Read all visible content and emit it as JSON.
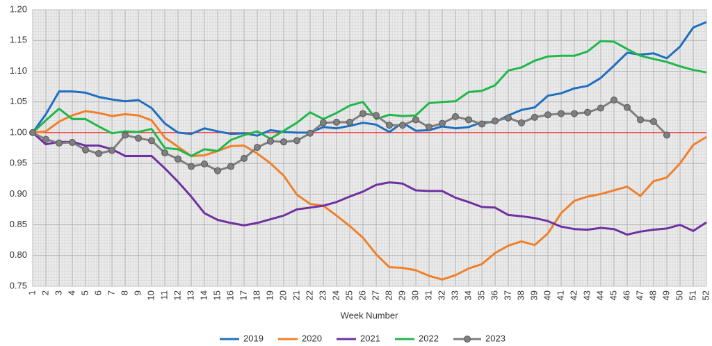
{
  "chart_data": {
    "type": "line",
    "x_label": "Week Number",
    "categories": [
      "1",
      "2",
      "3",
      "4",
      "5",
      "6",
      "7",
      "8",
      "9",
      "10",
      "11",
      "12",
      "13",
      "14",
      "15",
      "16",
      "17",
      "18",
      "19",
      "20",
      "21",
      "22",
      "23",
      "24",
      "25",
      "26",
      "27",
      "28",
      "29",
      "30",
      "31",
      "32",
      "33",
      "34",
      "35",
      "36",
      "37",
      "38",
      "39",
      "40",
      "41",
      "42",
      "43",
      "44",
      "45",
      "46",
      "47",
      "48",
      "49",
      "50",
      "51",
      "52"
    ],
    "ylim": [
      0.75,
      1.2
    ],
    "yticks": [
      {
        "value": 0.75,
        "label": "0.75"
      },
      {
        "value": 0.8,
        "label": "0.80"
      },
      {
        "value": 0.85,
        "label": "0.85"
      },
      {
        "value": 0.9,
        "label": "0.90"
      },
      {
        "value": 0.95,
        "label": "0.95"
      },
      {
        "value": 1,
        "label": "1.00"
      },
      {
        "value": 1.05,
        "label": "1.05"
      },
      {
        "value": 1.1,
        "label": "1.10"
      },
      {
        "value": 1.15,
        "label": "1.15"
      },
      {
        "value": 1.2,
        "label": "1.20"
      }
    ],
    "grid": true,
    "reference_line": {
      "value": 1,
      "color": "#ff0000"
    },
    "legend": "bottom",
    "series": [
      {
        "name": "2019",
        "color": "#1f6fc0",
        "markers": false,
        "values": [
          1.0,
          1.03,
          1.067,
          1.067,
          1.065,
          1.058,
          1.054,
          1.051,
          1.053,
          1.04,
          1.015,
          1.0,
          0.998,
          1.007,
          1.002,
          0.998,
          0.999,
          0.995,
          1.004,
          1.001,
          1.0,
          1.0,
          1.009,
          1.007,
          1.011,
          1.016,
          1.013,
          1.001,
          1.016,
          1.003,
          1.004,
          1.01,
          1.007,
          1.009,
          1.017,
          1.017,
          1.028,
          1.037,
          1.041,
          1.06,
          1.064,
          1.072,
          1.076,
          1.089,
          1.109,
          1.13,
          1.127,
          1.129,
          1.121,
          1.14,
          1.171,
          1.18
        ]
      },
      {
        "name": "2020",
        "color": "#f0802a",
        "markers": false,
        "values": [
          1.0,
          1.002,
          1.018,
          1.028,
          1.035,
          1.032,
          1.027,
          1.03,
          1.028,
          1.02,
          0.992,
          0.977,
          0.962,
          0.963,
          0.97,
          0.978,
          0.979,
          0.966,
          0.95,
          0.93,
          0.899,
          0.884,
          0.881,
          0.865,
          0.848,
          0.829,
          0.802,
          0.781,
          0.78,
          0.776,
          0.767,
          0.761,
          0.768,
          0.779,
          0.786,
          0.804,
          0.816,
          0.823,
          0.817,
          0.836,
          0.869,
          0.889,
          0.896,
          0.9,
          0.906,
          0.912,
          0.897,
          0.921,
          0.927,
          0.95,
          0.98,
          0.993
        ]
      },
      {
        "name": "2021",
        "color": "#7030a0",
        "markers": false,
        "values": [
          1.0,
          0.981,
          0.985,
          0.985,
          0.979,
          0.979,
          0.973,
          0.962,
          0.962,
          0.962,
          0.942,
          0.92,
          0.896,
          0.869,
          0.858,
          0.853,
          0.849,
          0.853,
          0.859,
          0.865,
          0.875,
          0.878,
          0.881,
          0.887,
          0.896,
          0.904,
          0.915,
          0.919,
          0.917,
          0.906,
          0.905,
          0.905,
          0.894,
          0.887,
          0.879,
          0.878,
          0.866,
          0.864,
          0.861,
          0.856,
          0.847,
          0.843,
          0.842,
          0.845,
          0.843,
          0.834,
          0.839,
          0.842,
          0.844,
          0.85,
          0.84,
          0.854
        ]
      },
      {
        "name": "2022",
        "color": "#1fb84a",
        "markers": false,
        "values": [
          1.0,
          1.02,
          1.039,
          1.022,
          1.022,
          1.01,
          0.999,
          1.002,
          1.001,
          1.006,
          0.975,
          0.973,
          0.962,
          0.973,
          0.97,
          0.988,
          0.996,
          1.002,
          0.99,
          1.003,
          1.016,
          1.033,
          1.022,
          1.032,
          1.044,
          1.05,
          1.022,
          1.029,
          1.027,
          1.028,
          1.048,
          1.05,
          1.051,
          1.066,
          1.068,
          1.077,
          1.101,
          1.106,
          1.117,
          1.124,
          1.125,
          1.125,
          1.132,
          1.149,
          1.148,
          1.136,
          1.125,
          1.12,
          1.115,
          1.108,
          1.102,
          1.098
        ]
      },
      {
        "name": "2023",
        "color": "#7f7f7f",
        "markers": true,
        "values": [
          1.0,
          0.989,
          0.983,
          0.984,
          0.972,
          0.966,
          0.971,
          0.996,
          0.991,
          0.987,
          0.967,
          0.957,
          0.945,
          0.949,
          0.938,
          0.945,
          0.958,
          0.976,
          0.986,
          0.985,
          0.987,
          0.999,
          1.016,
          1.017,
          1.017,
          1.031,
          1.028,
          1.012,
          1.012,
          1.021,
          1.009,
          1.015,
          1.026,
          1.021,
          1.014,
          1.019,
          1.024,
          1.016,
          1.025,
          1.029,
          1.031,
          1.031,
          1.033,
          1.04,
          1.053,
          1.041,
          1.021,
          1.018,
          0.996,
          null,
          null,
          null
        ]
      }
    ]
  }
}
